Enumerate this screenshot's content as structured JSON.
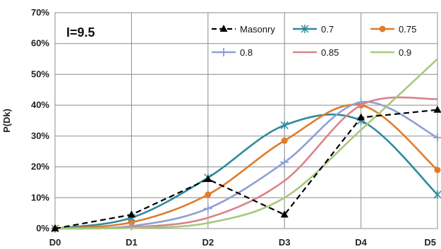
{
  "chart_data": {
    "type": "line",
    "annotation": "I=9.5",
    "ylabel": "P(Dk)",
    "xlabel": "",
    "categories": [
      "D0",
      "D1",
      "D2",
      "D3",
      "D4",
      "D5"
    ],
    "y_ticks": [
      "0%",
      "10%",
      "20%",
      "30%",
      "40%",
      "50%",
      "60%",
      "70%"
    ],
    "ylim": [
      0,
      70
    ],
    "grid": true,
    "legend_position": "top-right inside plot",
    "series": [
      {
        "name": "Masonry",
        "values": [
          0,
          4.5,
          16,
          4.5,
          36,
          38.5
        ],
        "color": "#000000",
        "marker": "triangle",
        "dash": true,
        "smooth": false
      },
      {
        "name": "0.7",
        "values": [
          0,
          3.5,
          16.5,
          33.5,
          35,
          11
        ],
        "color": "#2e8a9b",
        "marker": "asterisk",
        "dash": false,
        "smooth": true
      },
      {
        "name": "0.75",
        "values": [
          0,
          2,
          11,
          28.5,
          40,
          19
        ],
        "color": "#e07b2a",
        "marker": "circle",
        "dash": false,
        "smooth": true
      },
      {
        "name": "0.8",
        "values": [
          0,
          0.8,
          6.5,
          21.5,
          41,
          29.5
        ],
        "color": "#8f9fd4",
        "marker": "plus",
        "dash": false,
        "smooth": true
      },
      {
        "name": "0.85",
        "values": [
          0,
          0.4,
          3.5,
          15.5,
          40,
          42
        ],
        "color": "#d9838a",
        "marker": "none",
        "dash": false,
        "smooth": true
      },
      {
        "name": "0.9",
        "values": [
          0,
          0.2,
          1.8,
          10,
          32,
          55
        ],
        "color": "#a5c97a",
        "marker": "none",
        "dash": false,
        "smooth": true
      }
    ]
  }
}
